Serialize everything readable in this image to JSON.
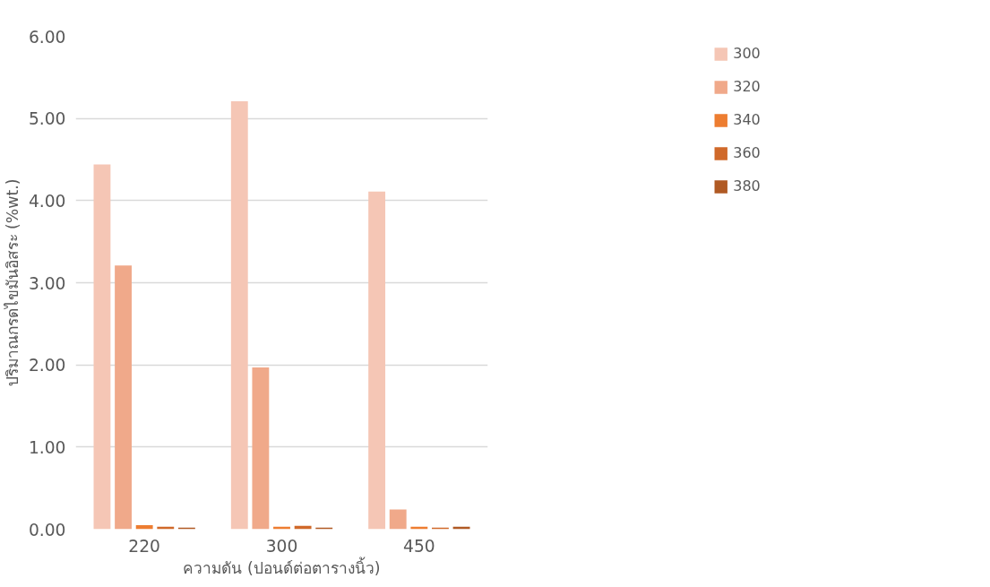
{
  "chart_data": {
    "type": "bar",
    "xlabel": "ความดัน (ปอนด์ต่อตารางนิ้ว)",
    "ylabel": "ปริมาณกรดไขมันอิสระ (%wt.)",
    "categories": [
      "220",
      "300",
      "450"
    ],
    "series": [
      {
        "name": "300",
        "color": "#f5c6b5",
        "values": [
          4.44,
          5.21,
          4.11
        ]
      },
      {
        "name": "320",
        "color": "#f0a98a",
        "values": [
          3.21,
          1.97,
          0.24
        ]
      },
      {
        "name": "340",
        "color": "#ed7d31",
        "values": [
          0.05,
          0.03,
          0.03
        ]
      },
      {
        "name": "360",
        "color": "#d0692a",
        "values": [
          0.03,
          0.04,
          0.02
        ]
      },
      {
        "name": "380",
        "color": "#b05a24",
        "values": [
          0.02,
          0.02,
          0.03
        ]
      }
    ],
    "ylim": [
      0,
      6
    ],
    "yticks": [
      {
        "value": 0,
        "label": "0.00"
      },
      {
        "value": 1,
        "label": "1.00"
      },
      {
        "value": 2,
        "label": "2.00"
      },
      {
        "value": 3,
        "label": "3.00"
      },
      {
        "value": 4,
        "label": "4.00"
      },
      {
        "value": 5,
        "label": "5.00"
      },
      {
        "value": 6,
        "label": "6.00"
      }
    ],
    "grid": "y",
    "legend": "right"
  }
}
